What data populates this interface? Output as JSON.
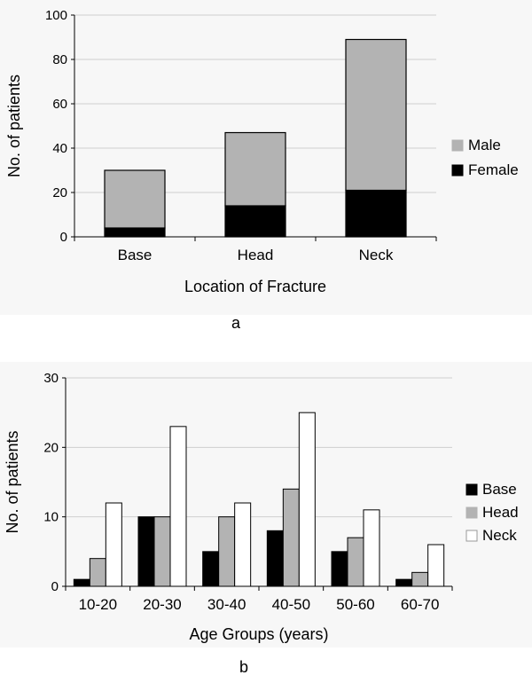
{
  "chart_data": [
    {
      "type": "bar",
      "stacked": true,
      "panel_label": "a",
      "categories": [
        "Base",
        "Head",
        "Neck"
      ],
      "series": [
        {
          "name": "Female",
          "values": [
            4,
            14,
            21
          ],
          "color": "#000000"
        },
        {
          "name": "Male",
          "values": [
            26,
            33,
            68
          ],
          "color": "#b3b3b3"
        }
      ],
      "xlabel": "Location of Fracture",
      "ylabel": "No. of patients",
      "ylim": [
        0,
        100
      ],
      "yticks": [
        "0",
        "20",
        "40",
        "60",
        "80",
        "100"
      ],
      "legend": [
        "Male",
        "Female"
      ],
      "legend_placement": "right",
      "grid": true
    },
    {
      "type": "bar",
      "stacked": false,
      "panel_label": "b",
      "categories": [
        "10-20",
        "20-30",
        "30-40",
        "40-50",
        "50-60",
        "60-70"
      ],
      "series": [
        {
          "name": "Base",
          "values": [
            1,
            10,
            5,
            8,
            5,
            1
          ],
          "color": "#000000"
        },
        {
          "name": "Head",
          "values": [
            4,
            10,
            10,
            14,
            7,
            2
          ],
          "color": "#b3b3b3"
        },
        {
          "name": "Neck",
          "values": [
            12,
            23,
            12,
            25,
            11,
            6
          ],
          "color": "#ffffff"
        }
      ],
      "xlabel": "Age Groups (years)",
      "ylabel": "No. of patients",
      "ylim": [
        0,
        30
      ],
      "yticks": [
        "0",
        "10",
        "20",
        "30"
      ],
      "legend": [
        "Base",
        "Head",
        "Neck"
      ],
      "legend_placement": "right",
      "grid": true
    }
  ]
}
